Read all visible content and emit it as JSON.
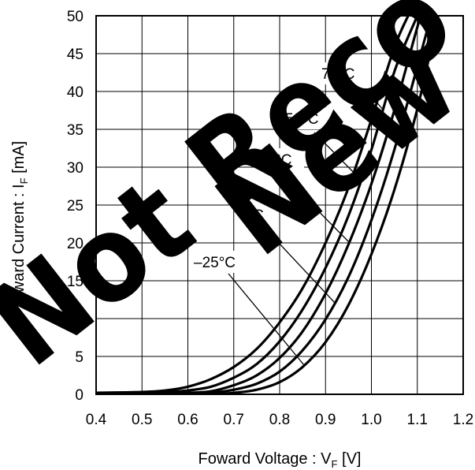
{
  "chart_data": {
    "type": "line",
    "title": "",
    "xlabel": "Foward Voltage : V",
    "xlabel_sub": "F",
    "xlabel_unit": " [V]",
    "ylabel": "Forward Current : I",
    "ylabel_sub": "F",
    "ylabel_unit": " [mA]",
    "xlim": [
      0.4,
      1.2
    ],
    "ylim": [
      0,
      50
    ],
    "xticks": [
      "0.4",
      "0.5",
      "0.6",
      "0.7",
      "0.8",
      "0.9",
      "1.0",
      "1.1",
      "1.2"
    ],
    "yticks": [
      "0",
      "5",
      "10",
      "15",
      "20",
      "25",
      "30",
      "35",
      "40",
      "45",
      "50"
    ],
    "grid": true,
    "series": [
      {
        "name": "75°C",
        "x": [
          0.4,
          0.5,
          0.55,
          0.6,
          0.65,
          0.7,
          0.75,
          0.8,
          0.85,
          0.9,
          0.95,
          1.0,
          1.05,
          1.08
        ],
        "y": [
          0.2,
          0.3,
          0.5,
          1.0,
          2.0,
          3.6,
          6.0,
          9.5,
          14.0,
          20.0,
          27.3,
          36.3,
          45.8,
          50
        ]
      },
      {
        "name": "50°C",
        "x": [
          0.4,
          0.5,
          0.55,
          0.6,
          0.65,
          0.7,
          0.75,
          0.8,
          0.85,
          0.9,
          0.95,
          1.0,
          1.05,
          1.1
        ],
        "y": [
          0.1,
          0.2,
          0.3,
          0.5,
          1.0,
          2.2,
          4.0,
          7.0,
          11.2,
          16.7,
          23.6,
          32.3,
          42.6,
          50
        ]
      },
      {
        "name": "25°C",
        "x": [
          0.4,
          0.55,
          0.6,
          0.65,
          0.7,
          0.75,
          0.8,
          0.85,
          0.9,
          0.95,
          1.0,
          1.05,
          1.1,
          1.11
        ],
        "y": [
          0.1,
          0.1,
          0.2,
          0.4,
          1.2,
          2.5,
          4.8,
          8.3,
          13.3,
          19.8,
          27.8,
          37.5,
          48.5,
          50
        ]
      },
      {
        "name": "0°C",
        "x": [
          0.4,
          0.6,
          0.65,
          0.7,
          0.75,
          0.8,
          0.85,
          0.9,
          0.95,
          1.0,
          1.05,
          1.1,
          1.13
        ],
        "y": [
          0.1,
          0.1,
          0.2,
          0.6,
          1.4,
          3.0,
          5.8,
          9.9,
          15.5,
          23.0,
          32.3,
          43.3,
          50
        ]
      },
      {
        "name": "–25°C",
        "x": [
          0.4,
          0.65,
          0.7,
          0.75,
          0.8,
          0.85,
          0.9,
          0.95,
          1.0,
          1.05,
          1.1,
          1.145
        ],
        "y": [
          0.1,
          0.1,
          0.2,
          0.6,
          1.6,
          3.6,
          6.9,
          11.8,
          18.5,
          27.0,
          37.7,
          50
        ]
      }
    ],
    "annotations": [
      {
        "text": "75°C"
      },
      {
        "text": "50°C"
      },
      {
        "text": "25°C"
      },
      {
        "text": "0°C"
      },
      {
        "text": "–25°C"
      }
    ]
  },
  "watermark": {
    "line1": "Not Reco",
    "line2": "New",
    "color": "#000000"
  }
}
